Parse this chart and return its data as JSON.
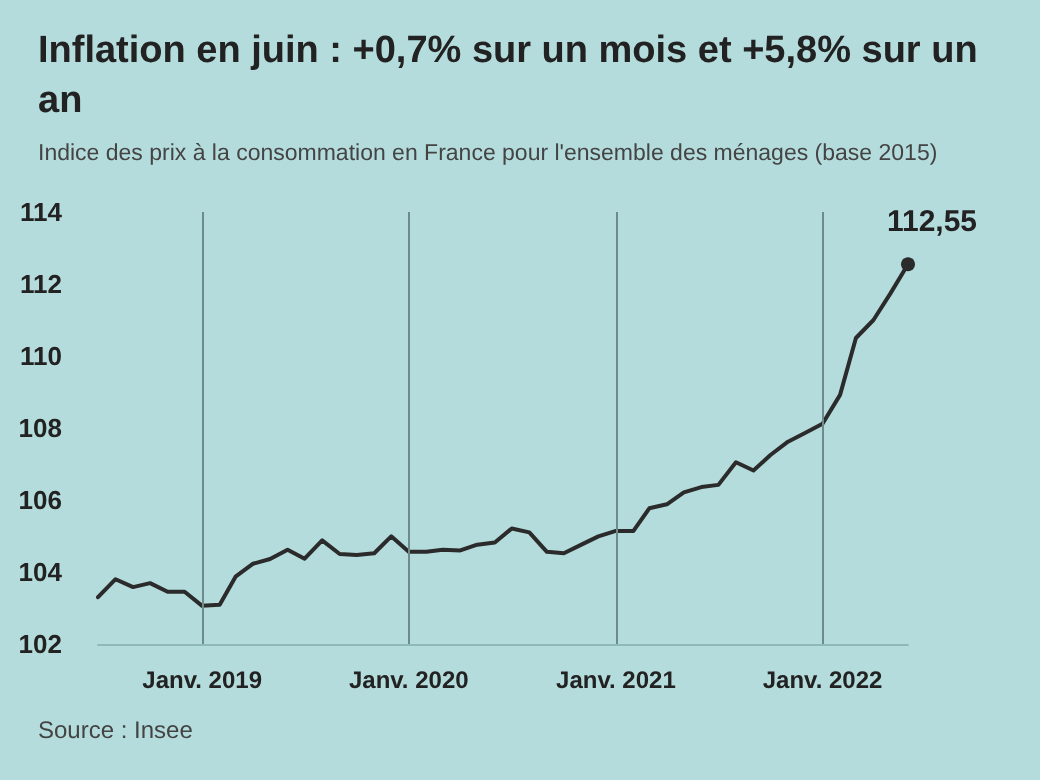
{
  "chart_data": {
    "type": "line",
    "title": "Inflation en juin : +0,7% sur un mois et +5,8% sur un an",
    "subtitle": "Indice des prix à la consommation en France pour l'ensemble des ménages (base 2015)",
    "x": [
      "2018-07",
      "2018-08",
      "2018-09",
      "2018-10",
      "2018-11",
      "2018-12",
      "2019-01",
      "2019-02",
      "2019-03",
      "2019-04",
      "2019-05",
      "2019-06",
      "2019-07",
      "2019-08",
      "2019-09",
      "2019-10",
      "2019-11",
      "2019-12",
      "2020-01",
      "2020-02",
      "2020-03",
      "2020-04",
      "2020-05",
      "2020-06",
      "2020-07",
      "2020-08",
      "2020-09",
      "2020-10",
      "2020-11",
      "2020-12",
      "2021-01",
      "2021-02",
      "2021-03",
      "2021-04",
      "2021-05",
      "2021-06",
      "2021-07",
      "2021-08",
      "2021-09",
      "2021-10",
      "2021-11",
      "2021-12",
      "2022-01",
      "2022-02",
      "2022-03",
      "2022-04",
      "2022-05",
      "2022-06"
    ],
    "series": [
      {
        "color": "#2b2b2b",
        "values": [
          103.3,
          103.8,
          103.58,
          103.69,
          103.45,
          103.45,
          103.06,
          103.09,
          103.87,
          104.23,
          104.36,
          104.62,
          104.37,
          104.88,
          104.5,
          104.47,
          104.52,
          104.99,
          104.56,
          104.56,
          104.62,
          104.6,
          104.76,
          104.82,
          105.21,
          105.1,
          104.56,
          104.52,
          104.76,
          104.99,
          105.14,
          105.14,
          105.77,
          105.88,
          106.21,
          106.36,
          106.42,
          107.05,
          106.82,
          107.25,
          107.62,
          107.86,
          108.12,
          108.92,
          110.5,
          111.0,
          111.74,
          112.55
        ]
      }
    ],
    "xlim": [
      "2018-07",
      "2022-06"
    ],
    "xticks": [
      {
        "value": "2019-01",
        "label": "Janv. 2019"
      },
      {
        "value": "2020-01",
        "label": "Janv. 2020"
      },
      {
        "value": "2021-01",
        "label": "Janv. 2021"
      },
      {
        "value": "2022-01",
        "label": "Janv. 2022"
      }
    ],
    "ylim": [
      102,
      114
    ],
    "yticks": [
      102,
      104,
      106,
      108,
      110,
      112,
      114
    ],
    "grid": "x",
    "marker": "none",
    "line_style": "solid",
    "annotations": [
      {
        "text": "112,55",
        "x": "2022-06",
        "y": 112.55
      },
      "Source : Insee"
    ]
  }
}
